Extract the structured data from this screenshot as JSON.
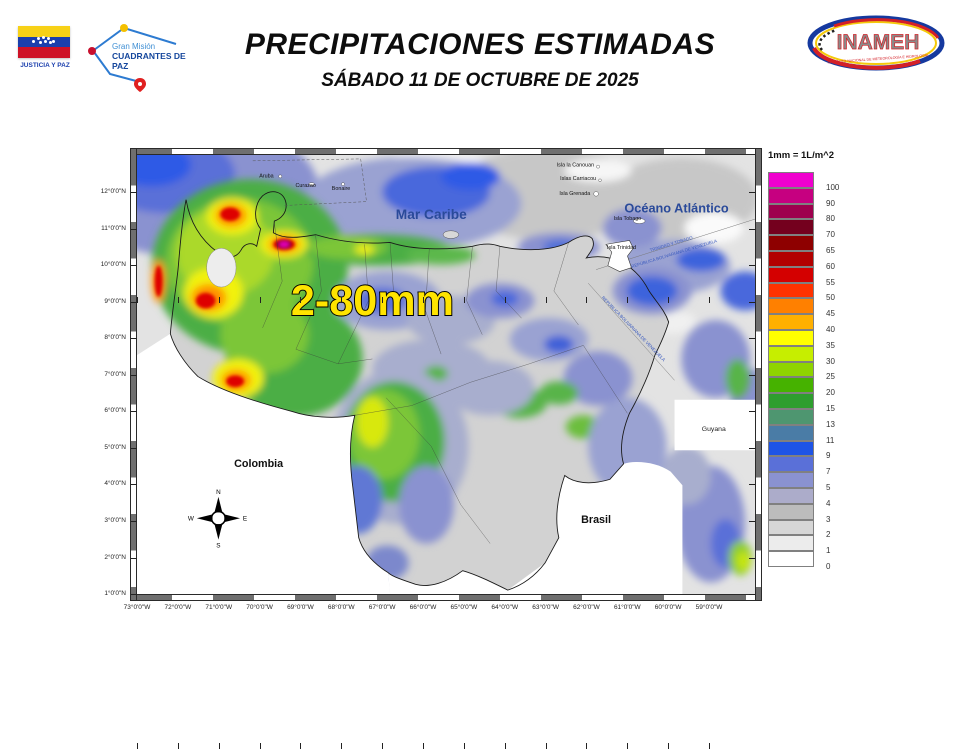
{
  "header": {
    "title_line1": "PRECIPITACIONES ESTIMADAS",
    "title_line2": "SÁBADO 11 DE OCTUBRE DE 2025",
    "left_logo": {
      "caption": "JUSTICIA Y PAZ",
      "mission_line1": "Gran Misión",
      "mission_line2": "CUADRANTES DE PAZ"
    },
    "right_logo": {
      "name": "INAMEH",
      "subtitle": "INSTITUTO NACIONAL DE METEOROLOGÍA E HIDROLOGÍA"
    }
  },
  "map": {
    "labels": {
      "mar_caribe": "Mar Caribe",
      "oceano_atlantico": "Océano Atlántico",
      "colombia": "Colombia",
      "brasil": "Brasil",
      "guyana": "Guyana",
      "annotation": "2-80mm",
      "islands": [
        "Aruba",
        "Curazao",
        "Bonaire",
        "Isla la Canouan",
        "Islas Carriacou",
        "Isla Grenada",
        "Isla Tobago",
        "Isla Trinidad"
      ],
      "boundary_text_1": "TRINIDAD Y TOBAGO",
      "boundary_text_2": "REPÚBLICA BOLIVARIANA DE VENEZUELA"
    },
    "compass": {
      "n": "N",
      "e": "E",
      "s": "S",
      "w": "W"
    },
    "axes": {
      "lon": [
        "73°0'0\"W",
        "72°0'0\"W",
        "71°0'0\"W",
        "70°0'0\"W",
        "69°0'0\"W",
        "68°0'0\"W",
        "67°0'0\"W",
        "66°0'0\"W",
        "65°0'0\"W",
        "64°0'0\"W",
        "63°0'0\"W",
        "62°0'0\"W",
        "61°0'0\"W",
        "60°0'0\"W",
        "59°0'0\"W"
      ],
      "lat": [
        "12°0'0\"N",
        "11°0'0\"N",
        "10°0'0\"N",
        "9°0'0\"N",
        "8°0'0\"N",
        "7°0'0\"N",
        "6°0'0\"N",
        "5°0'0\"N",
        "4°0'0\"N",
        "3°0'0\"N",
        "2°0'0\"N",
        "1°0'0\"N"
      ]
    }
  },
  "legend": {
    "title": "1mm = 1L/m^2",
    "entries": [
      {
        "value": "100",
        "color": "#F000CE"
      },
      {
        "value": "90",
        "color": "#C60080"
      },
      {
        "value": "80",
        "color": "#9E004E"
      },
      {
        "value": "70",
        "color": "#74001E"
      },
      {
        "value": "65",
        "color": "#8E0000"
      },
      {
        "value": "60",
        "color": "#B20000"
      },
      {
        "value": "55",
        "color": "#D40000"
      },
      {
        "value": "50",
        "color": "#FF3200"
      },
      {
        "value": "45",
        "color": "#FF8000"
      },
      {
        "value": "40",
        "color": "#FFB000"
      },
      {
        "value": "35",
        "color": "#FFFF00"
      },
      {
        "value": "30",
        "color": "#C6EE00"
      },
      {
        "value": "25",
        "color": "#8FD400"
      },
      {
        "value": "20",
        "color": "#46B200"
      },
      {
        "value": "15",
        "color": "#2E9E2E"
      },
      {
        "value": "13",
        "color": "#4E9670"
      },
      {
        "value": "11",
        "color": "#4A7CA6"
      },
      {
        "value": "9",
        "color": "#1E54E6"
      },
      {
        "value": "7",
        "color": "#5A70D8"
      },
      {
        "value": "5",
        "color": "#8A92D0"
      },
      {
        "value": "4",
        "color": "#ACACCA"
      },
      {
        "value": "3",
        "color": "#BCBCBC"
      },
      {
        "value": "2",
        "color": "#D6D6D6"
      },
      {
        "value": "1",
        "color": "#ECECEC"
      },
      {
        "value": "0",
        "color": "#FFFFFF"
      }
    ]
  }
}
